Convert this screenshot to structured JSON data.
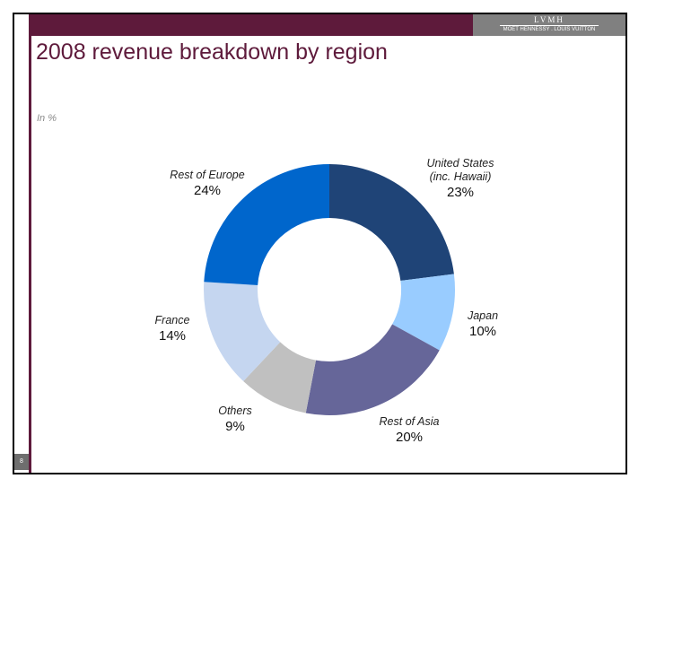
{
  "slide": {
    "title": "2008 revenue breakdown by region",
    "unit_note": "In %",
    "page_number": "8",
    "logo": {
      "top": "LVMH",
      "bottom": "MOËT HENNESSY . LOUIS VUITTON"
    },
    "colors": {
      "brand": "#5e1a3b",
      "logo_bg": "#808080"
    }
  },
  "chart_data": {
    "type": "pie",
    "style": "donut",
    "title": "2008 revenue breakdown by region",
    "unit": "In %",
    "slices": [
      {
        "label": "United States (inc. Hawaii)",
        "label_lines": [
          "United States",
          "(inc. Hawaii)"
        ],
        "value": 23,
        "value_label": "23%",
        "color": "#1f4477"
      },
      {
        "label": "Japan",
        "label_lines": [
          "Japan"
        ],
        "value": 10,
        "value_label": "10%",
        "color": "#99ccff"
      },
      {
        "label": "Rest of Asia",
        "label_lines": [
          "Rest of Asia"
        ],
        "value": 20,
        "value_label": "20%",
        "color": "#666699"
      },
      {
        "label": "Others",
        "label_lines": [
          "Others"
        ],
        "value": 9,
        "value_label": "9%",
        "color": "#c0c0c0"
      },
      {
        "label": "France",
        "label_lines": [
          "France"
        ],
        "value": 14,
        "value_label": "14%",
        "color": "#c5d6f0"
      },
      {
        "label": "Rest of Europe",
        "label_lines": [
          "Rest of Europe"
        ],
        "value": 24,
        "value_label": "24%",
        "color": "#0066cc"
      }
    ]
  }
}
